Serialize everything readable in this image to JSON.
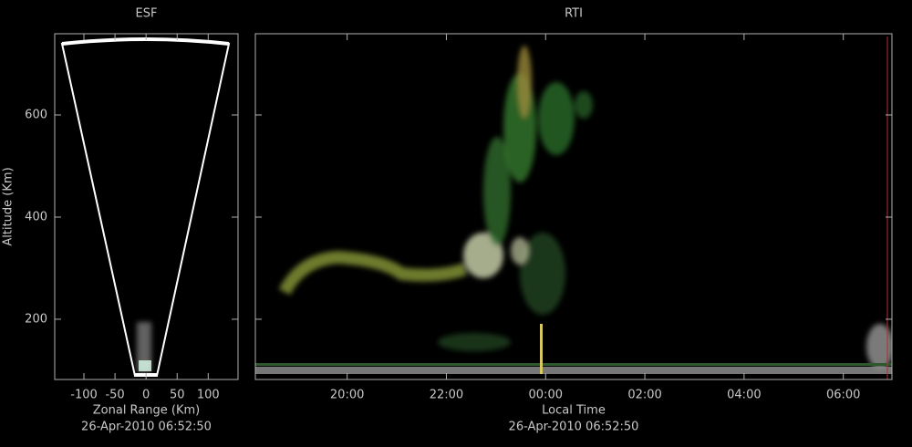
{
  "chart_data": [
    {
      "type": "fan",
      "title": "ESF",
      "xlabel": "Zonal Range (Km)",
      "ylabel": "Altitude (Km)",
      "date": "26-Apr-2010 06:52:50",
      "xlim": [
        -147,
        148
      ],
      "xticks": [
        -100,
        -50,
        0,
        50,
        100
      ],
      "ylim": [
        82,
        759
      ],
      "yticks": [
        200,
        400,
        600
      ],
      "show_ytick_labels": true
    },
    {
      "type": "heatmap",
      "title": "RTI",
      "xlabel": "Local Time",
      "date": "26-Apr-2010 06:52:50",
      "xlim": [
        18.15,
        30.98
      ],
      "xticks": [
        {
          "value": 20,
          "label": "20:00"
        },
        {
          "value": 22,
          "label": "22:00"
        },
        {
          "value": 24,
          "label": "00:00"
        },
        {
          "value": 26,
          "label": "02:00"
        },
        {
          "value": 28,
          "label": "04:00"
        },
        {
          "value": 30,
          "label": "06:00"
        }
      ],
      "ylim": [
        82,
        759
      ],
      "yticks": [
        200,
        400,
        600
      ],
      "show_ytick_labels": false
    }
  ]
}
